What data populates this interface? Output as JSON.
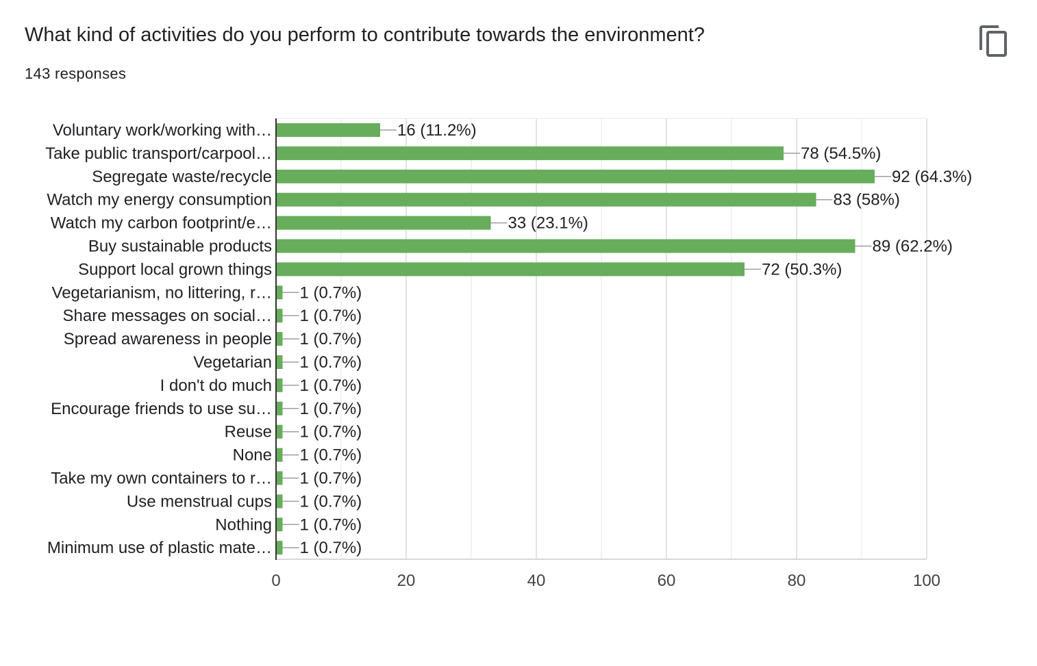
{
  "question": {
    "title": "What kind of activities do you perform to contribute towards the environment?",
    "responses_label": "143 responses"
  },
  "toolbar": {
    "copy_icon": "content-copy-icon"
  },
  "colors": {
    "bar": "#67ad5b",
    "text": "#202124",
    "grid": "#e6e6e6",
    "axis": "#333333",
    "leader": "#9e9e9e"
  },
  "chart_data": {
    "type": "bar",
    "orientation": "horizontal",
    "categories": [
      "Voluntary work/working with…",
      "Take public transport/carpool…",
      "Segregate waste/recycle",
      "Watch my energy consumption",
      "Watch my carbon footprint/e…",
      "Buy sustainable products",
      "Support local grown things",
      "Vegetarianism, no littering, r…",
      "Share messages on social…",
      "Spread awareness in people",
      "Vegetarian",
      "I don't do much",
      "Encourage friends to use su…",
      "Reuse",
      "None",
      "Take my own containers to r…",
      "Use menstrual cups",
      "Nothing",
      "Minimum use of plastic mate…"
    ],
    "values": [
      16,
      78,
      92,
      83,
      33,
      89,
      72,
      1,
      1,
      1,
      1,
      1,
      1,
      1,
      1,
      1,
      1,
      1,
      1
    ],
    "data_labels": [
      "16 (11.2%)",
      "78 (54.5%)",
      "92 (64.3%)",
      "83 (58%)",
      "33 (23.1%)",
      "89 (62.2%)",
      "72 (50.3%)",
      "1 (0.7%)",
      "1 (0.7%)",
      "1 (0.7%)",
      "1 (0.7%)",
      "1 (0.7%)",
      "1 (0.7%)",
      "1 (0.7%)",
      "1 (0.7%)",
      "1 (0.7%)",
      "1 (0.7%)",
      "1 (0.7%)",
      "1 (0.7%)"
    ],
    "xlim": [
      0,
      100
    ],
    "xticks": [
      0,
      20,
      40,
      60,
      80,
      100
    ],
    "xtick_labels": [
      "0",
      "20",
      "40",
      "60",
      "80",
      "100"
    ],
    "minor_grid_step": 10,
    "grid": true,
    "legend": false
  }
}
